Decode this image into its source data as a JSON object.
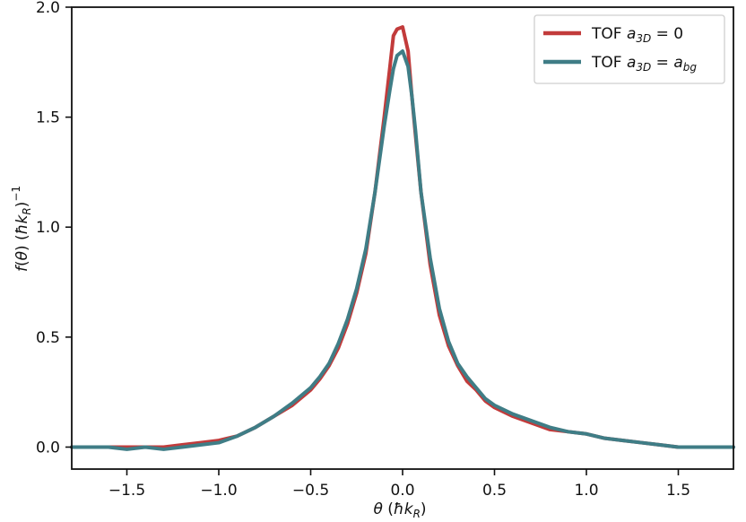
{
  "chart_data": {
    "type": "line",
    "xlabel": "θ (ħk_R)",
    "ylabel": "f(θ) (ħk_R)^−1",
    "xlim": [
      -1.8,
      1.8
    ],
    "ylim": [
      -0.1,
      2.0
    ],
    "xticks": [
      {
        "value": -1.5,
        "label": "−1.5"
      },
      {
        "value": -1.0,
        "label": "−1.0"
      },
      {
        "value": -0.5,
        "label": "−0.5"
      },
      {
        "value": 0.0,
        "label": "0.0"
      },
      {
        "value": 0.5,
        "label": "0.5"
      },
      {
        "value": 1.0,
        "label": "1.0"
      },
      {
        "value": 1.5,
        "label": "1.5"
      }
    ],
    "yticks": [
      {
        "value": 0.0,
        "label": "0.0"
      },
      {
        "value": 0.5,
        "label": "0.5"
      },
      {
        "value": 1.0,
        "label": "1.0"
      },
      {
        "value": 1.5,
        "label": "1.5"
      },
      {
        "value": 2.0,
        "label": "2.0"
      }
    ],
    "grid": false,
    "legend_position": "top-right",
    "series": [
      {
        "name": "TOF a_3D = 0",
        "color": "#c23b3b",
        "x": [
          -1.8,
          -1.7,
          -1.6,
          -1.5,
          -1.4,
          -1.3,
          -1.2,
          -1.1,
          -1.0,
          -0.9,
          -0.8,
          -0.7,
          -0.6,
          -0.5,
          -0.45,
          -0.4,
          -0.35,
          -0.3,
          -0.25,
          -0.2,
          -0.15,
          -0.1,
          -0.07,
          -0.05,
          -0.03,
          0.0,
          0.03,
          0.05,
          0.07,
          0.1,
          0.15,
          0.2,
          0.25,
          0.3,
          0.35,
          0.4,
          0.45,
          0.5,
          0.6,
          0.7,
          0.8,
          0.9,
          1.0,
          1.1,
          1.2,
          1.3,
          1.4,
          1.5,
          1.6,
          1.7,
          1.8
        ],
        "values": [
          0.0,
          0.0,
          0.0,
          0.0,
          0.0,
          0.0,
          0.01,
          0.02,
          0.03,
          0.05,
          0.09,
          0.14,
          0.19,
          0.26,
          0.31,
          0.37,
          0.45,
          0.56,
          0.7,
          0.88,
          1.16,
          1.5,
          1.72,
          1.87,
          1.9,
          1.91,
          1.8,
          1.6,
          1.42,
          1.16,
          0.83,
          0.6,
          0.46,
          0.37,
          0.3,
          0.26,
          0.21,
          0.18,
          0.14,
          0.11,
          0.08,
          0.07,
          0.06,
          0.04,
          0.03,
          0.02,
          0.01,
          0.0,
          0.0,
          0.0,
          0.0
        ]
      },
      {
        "name": "TOF a_3D = a_bg",
        "color": "#3f7d86",
        "x": [
          -1.8,
          -1.7,
          -1.6,
          -1.5,
          -1.4,
          -1.3,
          -1.2,
          -1.1,
          -1.0,
          -0.9,
          -0.8,
          -0.7,
          -0.6,
          -0.5,
          -0.45,
          -0.4,
          -0.35,
          -0.3,
          -0.25,
          -0.2,
          -0.15,
          -0.1,
          -0.07,
          -0.05,
          -0.03,
          0.0,
          0.03,
          0.05,
          0.07,
          0.1,
          0.15,
          0.2,
          0.25,
          0.3,
          0.35,
          0.4,
          0.45,
          0.5,
          0.6,
          0.7,
          0.8,
          0.9,
          1.0,
          1.1,
          1.2,
          1.3,
          1.4,
          1.5,
          1.6,
          1.7,
          1.8
        ],
        "values": [
          0.0,
          0.0,
          0.0,
          -0.01,
          0.0,
          -0.01,
          0.0,
          0.01,
          0.02,
          0.05,
          0.09,
          0.14,
          0.2,
          0.27,
          0.32,
          0.38,
          0.47,
          0.58,
          0.72,
          0.9,
          1.16,
          1.46,
          1.62,
          1.72,
          1.78,
          1.8,
          1.73,
          1.6,
          1.44,
          1.16,
          0.86,
          0.63,
          0.48,
          0.38,
          0.32,
          0.27,
          0.22,
          0.19,
          0.15,
          0.12,
          0.09,
          0.07,
          0.06,
          0.04,
          0.03,
          0.02,
          0.01,
          0.0,
          0.0,
          0.0,
          0.0
        ]
      }
    ]
  }
}
